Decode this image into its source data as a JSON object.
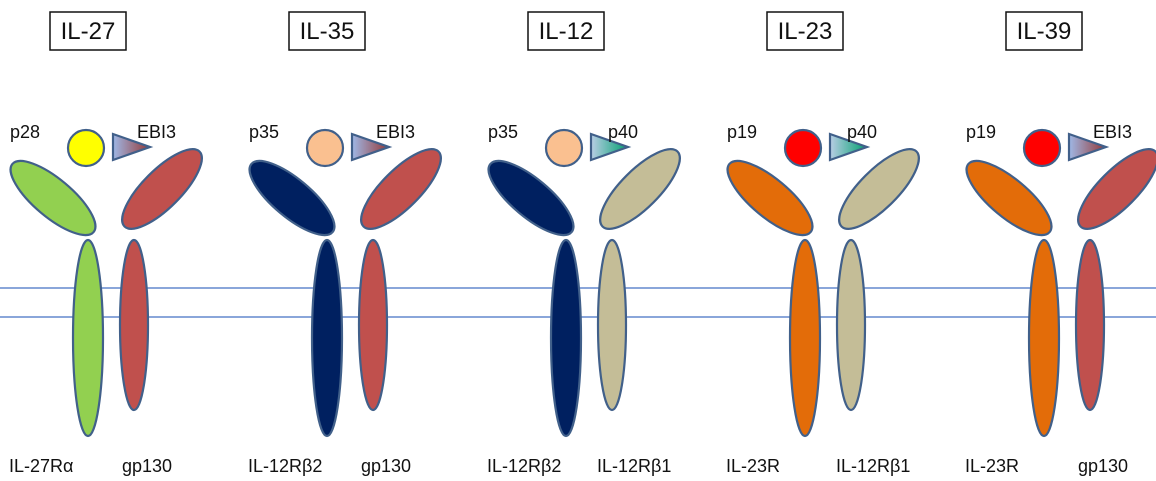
{
  "colors": {
    "membrane_line": "#4472c4",
    "outline": "#41608a",
    "green_receptor": "#92d050",
    "navy_receptor": "#002060",
    "red_receptor": "#c0504d",
    "beige_receptor": "#c4bd97",
    "orange_receptor": "#e36c09",
    "yellow_subunit": "#ffff00",
    "peach_subunit": "#fac090",
    "red_subunit": "#ff0000",
    "ebi3_gradient": [
      "#9fb8e6",
      "#953735"
    ],
    "p40_gradient": [
      "#b9cde5",
      "#00a06e"
    ]
  },
  "cytokines": [
    {
      "name": "IL-27",
      "alpha_subunit": "p28",
      "beta_subunit": "EBI3",
      "alpha_color": "yellow",
      "beta_type": "ebi3",
      "receptor_left": "IL-27Rα",
      "receptor_right": "gp130",
      "receptor_left_color": "green",
      "receptor_right_color": "red"
    },
    {
      "name": "IL-35",
      "alpha_subunit": "p35",
      "beta_subunit": "EBI3",
      "alpha_color": "peach",
      "beta_type": "ebi3",
      "receptor_left": "IL-12Rβ2",
      "receptor_right": "gp130",
      "receptor_left_color": "navy",
      "receptor_right_color": "red"
    },
    {
      "name": "IL-12",
      "alpha_subunit": "p35",
      "beta_subunit": "p40",
      "alpha_color": "peach",
      "beta_type": "p40",
      "receptor_left": "IL-12Rβ2",
      "receptor_right": "IL-12Rβ1",
      "receptor_left_color": "navy",
      "receptor_right_color": "beige"
    },
    {
      "name": "IL-23",
      "alpha_subunit": "p19",
      "beta_subunit": "p40",
      "alpha_color": "red",
      "beta_type": "p40",
      "receptor_left": "IL-23R",
      "receptor_right": "IL-12Rβ1",
      "receptor_left_color": "orange",
      "receptor_right_color": "beige"
    },
    {
      "name": "IL-39",
      "alpha_subunit": "p19",
      "beta_subunit": "EBI3",
      "alpha_color": "red",
      "beta_type": "ebi3",
      "receptor_left": "IL-23R",
      "receptor_right": "gp130",
      "receptor_left_color": "orange",
      "receptor_right_color": "red"
    }
  ]
}
